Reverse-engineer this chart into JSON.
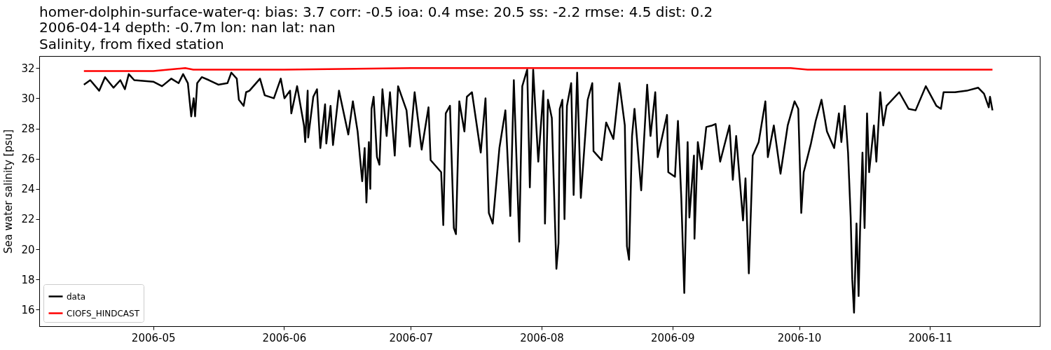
{
  "chart_data": {
    "type": "line",
    "title": "homer-dolphin-surface-water-q: bias: 3.7  corr: -0.5  ioa: 0.4  mse: 20.5  ss: -2.2  rmse: 4.5  dist: 0.2",
    "subtitle": "2006-04-14 depth: -0.7m lon: nan lat: nan\nSalinity, from fixed station",
    "ylabel": "Sea water salinity [psu]",
    "xlim": [
      "2006-04-04",
      "2006-11-27"
    ],
    "xticks": [
      "2006-05",
      "2006-06",
      "2006-07",
      "2006-08",
      "2006-09",
      "2006-10",
      "2006-11"
    ],
    "ylim": [
      14.9,
      32.8
    ],
    "yticks": [
      16,
      18,
      20,
      22,
      24,
      26,
      28,
      30,
      32
    ],
    "grid": false,
    "legend": "bottom left",
    "series": [
      {
        "name": "data",
        "color": "#000000",
        "x": [
          "2006-04-14T14:00",
          "2006-04-16T02:00",
          "2006-04-18T05:00",
          "2006-04-19T14:00",
          "2006-04-21T14:00",
          "2006-04-23T05:00",
          "2006-04-24T07:00",
          "2006-04-25T05:00",
          "2006-04-26T12:00",
          "2006-05-01T00:00",
          "2006-05-03T02:00",
          "2006-05-05T07:00",
          "2006-05-07T00:00",
          "2006-05-08T02:00",
          "2006-05-09T05:00",
          "2006-05-10T00:00",
          "2006-05-10T14:00",
          "2006-05-10T22:00",
          "2006-05-11T10:00",
          "2006-05-12T12:00",
          "2006-05-14T05:00",
          "2006-05-16T10:00",
          "2006-05-18T14:00",
          "2006-05-19T12:00",
          "2006-05-20T19:00",
          "2006-05-21T07:00",
          "2006-05-22T10:00",
          "2006-05-23T00:00",
          "2006-05-23T19:00",
          "2006-05-26T07:00",
          "2006-05-27T10:00",
          "2006-05-29T14:00",
          "2006-05-31T05:00",
          "2006-06-01T02:00",
          "2006-06-02T10:00",
          "2006-06-02T17:00",
          "2006-06-04T02:00",
          "2006-06-05T17:00",
          "2006-06-06T00:00",
          "2006-06-06T14:00",
          "2006-06-06T17:00",
          "2006-06-07T22:00",
          "2006-06-08T19:00",
          "2006-06-09T14:00",
          "2006-06-10T17:00",
          "2006-06-11T00:00",
          "2006-06-12T00:00",
          "2006-06-12T14:00",
          "2006-06-14T00:00",
          "2006-06-16T05:00",
          "2006-06-17T07:00",
          "2006-06-18T10:00",
          "2006-06-19T12:00",
          "2006-06-20T02:00",
          "2006-06-20T12:00",
          "2006-06-21T02:00",
          "2006-06-21T10:00",
          "2006-06-21T17:00",
          "2006-06-22T05:00",
          "2006-06-23T00:00",
          "2006-06-23T14:00",
          "2006-06-24T07:00",
          "2006-06-25T07:00",
          "2006-06-26T02:00",
          "2006-06-27T05:00",
          "2006-06-28T00:00",
          "2006-06-30T00:00",
          "2006-06-30T19:00",
          "2006-07-01T22:00",
          "2006-07-03T14:00",
          "2006-07-05T05:00",
          "2006-07-05T17:00",
          "2006-07-08T05:00",
          "2006-07-08T17:00",
          "2006-07-09T07:00",
          "2006-07-10T07:00",
          "2006-07-11T05:00",
          "2006-07-11T17:00",
          "2006-07-12T12:00",
          "2006-07-13T17:00",
          "2006-07-14T07:00",
          "2006-07-15T12:00",
          "2006-07-17T14:00",
          "2006-07-18T17:00",
          "2006-07-19T12:00",
          "2006-07-20T10:00",
          "2006-07-22T00:00",
          "2006-07-23T10:00",
          "2006-07-24T14:00",
          "2006-07-25T10:00",
          "2006-07-26T17:00",
          "2006-07-27T10:00",
          "2006-07-28T14:00",
          "2006-07-29T05:00",
          "2006-07-30T00:00",
          "2006-07-31T05:00",
          "2006-08-01T10:00",
          "2006-08-01T19:00",
          "2006-08-02T12:00",
          "2006-08-03T10:00",
          "2006-08-04T12:00",
          "2006-08-05T00:00",
          "2006-08-05T07:00",
          "2006-08-05T22:00",
          "2006-08-06T10:00",
          "2006-08-07T00:00",
          "2006-08-08T00:00",
          "2006-08-08T14:00",
          "2006-08-09T10:00",
          "2006-08-10T07:00",
          "2006-08-11T22:00",
          "2006-08-13T00:00",
          "2006-08-13T07:00",
          "2006-08-15T05:00",
          "2006-08-16T07:00",
          "2006-08-18T00:00",
          "2006-08-19T10:00",
          "2006-08-20T17:00",
          "2006-08-21T05:00",
          "2006-08-21T17:00",
          "2006-08-22T10:00",
          "2006-08-23T00:00",
          "2006-08-24T14:00",
          "2006-08-26T00:00",
          "2006-08-26T19:00",
          "2006-08-27T22:00",
          "2006-08-28T12:00",
          "2006-08-30T17:00",
          "2006-08-31T00:00",
          "2006-09-01T14:00",
          "2006-09-02T07:00",
          "2006-09-03T02:00",
          "2006-09-03T19:00",
          "2006-09-04T14:00",
          "2006-09-05T00:00",
          "2006-09-06T02:00",
          "2006-09-06T05:00",
          "2006-09-07T00:00",
          "2006-09-07T22:00",
          "2006-09-09T00:00",
          "2006-09-10T10:00",
          "2006-09-11T05:00",
          "2006-09-12T07:00",
          "2006-09-14T12:00",
          "2006-09-15T07:00",
          "2006-09-16T02:00",
          "2006-09-17T17:00",
          "2006-09-18T07:00",
          "2006-09-19T02:00",
          "2006-09-20T00:00",
          "2006-09-21T10:00",
          "2006-09-23T00:00",
          "2006-09-23T14:00",
          "2006-09-25T00:00",
          "2006-09-26T14:00",
          "2006-09-28T07:00",
          "2006-09-29T22:00",
          "2006-09-30T19:00",
          "2006-10-01T12:00",
          "2006-10-02T02:00",
          "2006-10-03T19:00",
          "2006-10-04T22:00",
          "2006-10-06T07:00",
          "2006-10-07T14:00",
          "2006-10-09T07:00",
          "2006-10-10T10:00",
          "2006-10-11T00:00",
          "2006-10-11T19:00",
          "2006-10-12T14:00",
          "2006-10-13T05:00",
          "2006-10-13T14:00",
          "2006-10-14T00:00",
          "2006-10-14T14:00",
          "2006-10-15T02:00",
          "2006-10-15T10:00",
          "2006-10-16T00:00",
          "2006-10-16T12:00",
          "2006-10-17T02:00",
          "2006-10-17T14:00",
          "2006-10-18T17:00",
          "2006-10-19T07:00",
          "2006-10-20T05:00",
          "2006-10-20T22:00",
          "2006-10-21T17:00",
          "2006-10-24T17:00",
          "2006-10-26T22:00",
          "2006-10-28T14:00",
          "2006-10-31T00:00",
          "2006-11-02T12:00",
          "2006-11-03T14:00",
          "2006-11-04T05:00",
          "2006-11-06T22:00",
          "2006-11-09T17:00",
          "2006-11-12T10:00",
          "2006-11-13T19:00",
          "2006-11-14T22:00",
          "2006-11-15T05:00",
          "2006-11-15T19:00"
        ],
        "values": [
          30.9,
          31.2,
          30.5,
          31.4,
          30.7,
          31.2,
          30.6,
          31.6,
          31.2,
          31.1,
          30.8,
          31.3,
          31.0,
          31.6,
          31.0,
          28.8,
          30.0,
          28.8,
          31.0,
          31.4,
          31.2,
          30.9,
          31.0,
          31.7,
          31.3,
          29.9,
          29.5,
          30.4,
          30.5,
          31.3,
          30.2,
          30.0,
          31.3,
          30.0,
          30.5,
          29.0,
          30.8,
          28.2,
          27.1,
          30.5,
          27.4,
          30.1,
          30.6,
          26.7,
          29.6,
          27.0,
          29.5,
          26.9,
          30.5,
          27.6,
          29.8,
          27.8,
          24.5,
          26.7,
          23.1,
          27.1,
          24.0,
          29.3,
          30.1,
          26.1,
          25.6,
          30.6,
          27.5,
          30.4,
          26.2,
          30.8,
          29.2,
          26.8,
          30.4,
          26.6,
          29.4,
          25.9,
          25.1,
          21.6,
          29.0,
          29.5,
          21.4,
          21.0,
          29.8,
          27.8,
          30.1,
          30.4,
          26.4,
          30.0,
          22.4,
          21.7,
          26.7,
          29.2,
          22.2,
          31.2,
          20.5,
          30.8,
          31.9,
          24.1,
          31.9,
          25.8,
          30.5,
          21.7,
          29.9,
          28.7,
          18.7,
          20.4,
          29.3,
          29.9,
          22.0,
          29.5,
          31.0,
          23.6,
          31.7,
          23.4,
          29.9,
          31.0,
          26.5,
          25.9,
          28.4,
          27.3,
          31.0,
          28.2,
          20.2,
          19.3,
          27.5,
          29.3,
          23.9,
          30.9,
          27.5,
          30.4,
          26.1,
          28.9,
          25.1,
          24.8,
          28.5,
          23.4,
          17.1,
          27.1,
          22.1,
          26.2,
          20.7,
          27.1,
          25.3,
          28.1,
          28.2,
          28.3,
          25.8,
          28.2,
          24.6,
          27.5,
          21.9,
          24.7,
          18.4,
          26.2,
          27.1,
          29.8,
          26.1,
          28.2,
          25.0,
          28.2,
          29.8,
          29.3,
          22.4,
          25.1,
          27.0,
          28.5,
          29.9,
          27.8,
          26.7,
          29.0,
          27.1,
          29.5,
          26.4,
          22.1,
          18.0,
          15.8,
          21.7,
          16.9,
          21.1,
          26.4,
          21.4,
          29.0,
          25.1,
          28.2,
          25.8,
          30.4,
          28.2,
          29.5,
          30.4,
          29.3,
          29.2,
          30.8,
          29.5,
          29.3,
          30.4,
          30.4,
          30.5,
          30.7,
          30.3,
          29.4,
          30.1,
          29.2
        ]
      },
      {
        "name": "CIOFS_HINDCAST",
        "color": "#ff0000",
        "x": [
          "2006-04-14T14:00",
          "2006-05-01T00:00",
          "2006-05-08T14:00",
          "2006-05-10T12:00",
          "2006-06-01T00:00",
          "2006-07-01T00:00",
          "2006-08-01T00:00",
          "2006-09-01T00:00",
          "2006-09-29T00:00",
          "2006-10-03T00:00",
          "2006-10-15T00:00",
          "2006-11-15T19:00"
        ],
        "values": [
          31.8,
          31.8,
          32.0,
          31.9,
          31.9,
          32.0,
          32.0,
          32.0,
          32.0,
          31.9,
          31.9,
          31.9
        ]
      }
    ]
  }
}
